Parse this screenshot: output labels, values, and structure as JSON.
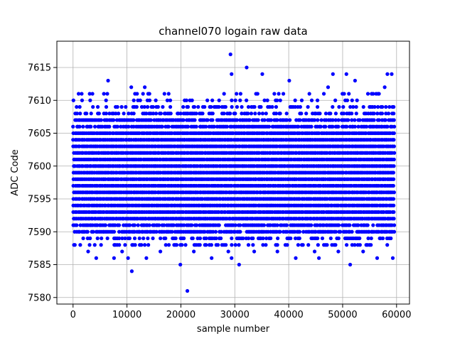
{
  "chart_data": {
    "type": "scatter",
    "title": "channel070 logain raw data",
    "xlabel": "sample number",
    "ylabel": "ADC Code",
    "xlim": [
      -3000,
      62400
    ],
    "ylim": [
      7579,
      7619
    ],
    "x_ticks": [
      0,
      10000,
      20000,
      30000,
      40000,
      50000,
      60000
    ],
    "y_ticks": [
      7580,
      7585,
      7590,
      7595,
      7600,
      7605,
      7610,
      7615
    ],
    "grid": true,
    "marker_color": "#0000ff",
    "series": [
      {
        "x_range": [
          0,
          59500
        ],
        "dense_band": [
          7590,
          7607
        ],
        "outliers": [
          {
            "x": 21200,
            "y": 7581
          },
          {
            "x": 10900,
            "y": 7584
          },
          {
            "x": 19900,
            "y": 7585
          },
          {
            "x": 30800,
            "y": 7585
          },
          {
            "x": 51400,
            "y": 7585
          },
          {
            "x": 4300,
            "y": 7586
          },
          {
            "x": 7600,
            "y": 7586
          },
          {
            "x": 10200,
            "y": 7586
          },
          {
            "x": 13600,
            "y": 7586
          },
          {
            "x": 25700,
            "y": 7586
          },
          {
            "x": 29400,
            "y": 7586
          },
          {
            "x": 41300,
            "y": 7586
          },
          {
            "x": 45600,
            "y": 7586
          },
          {
            "x": 56400,
            "y": 7586
          },
          {
            "x": 59300,
            "y": 7586
          },
          {
            "x": 2800,
            "y": 7587
          },
          {
            "x": 9100,
            "y": 7587
          },
          {
            "x": 16200,
            "y": 7587
          },
          {
            "x": 22400,
            "y": 7587
          },
          {
            "x": 28800,
            "y": 7587
          },
          {
            "x": 33600,
            "y": 7587
          },
          {
            "x": 37900,
            "y": 7587
          },
          {
            "x": 44800,
            "y": 7587
          },
          {
            "x": 49200,
            "y": 7587
          },
          {
            "x": 53800,
            "y": 7587
          },
          {
            "x": 6500,
            "y": 7613
          },
          {
            "x": 13300,
            "y": 7612
          },
          {
            "x": 10800,
            "y": 7612
          },
          {
            "x": 40100,
            "y": 7613
          },
          {
            "x": 47300,
            "y": 7612
          },
          {
            "x": 52300,
            "y": 7613
          },
          {
            "x": 57800,
            "y": 7612
          },
          {
            "x": 29400,
            "y": 7614
          },
          {
            "x": 35100,
            "y": 7614
          },
          {
            "x": 48200,
            "y": 7614
          },
          {
            "x": 50700,
            "y": 7614
          },
          {
            "x": 58300,
            "y": 7614
          },
          {
            "x": 59100,
            "y": 7614
          },
          {
            "x": 32200,
            "y": 7615
          },
          {
            "x": 29200,
            "y": 7617
          }
        ]
      }
    ]
  }
}
